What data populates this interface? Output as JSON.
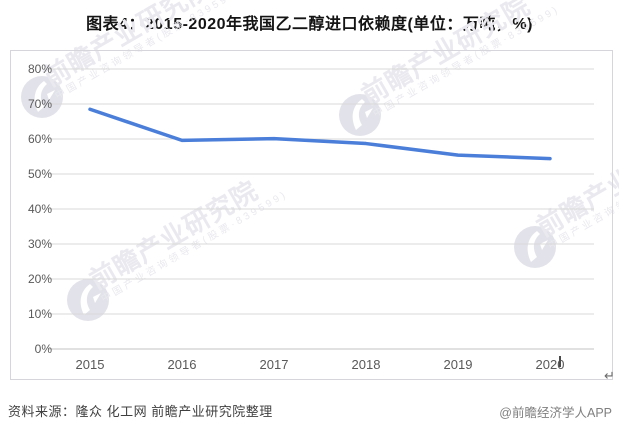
{
  "title": "图表4：2015-2020年我国乙二醇进口依赖度(单位：万吨，%)",
  "chart_data": {
    "type": "line",
    "title": "2015-2020年我国乙二醇进口依赖度",
    "x": [
      "2015",
      "2016",
      "2017",
      "2018",
      "2019",
      "2020"
    ],
    "series": [
      {
        "name": "乙二醇进口依赖度",
        "values": [
          68.5,
          59.6,
          60.1,
          58.7,
          55.4,
          54.4
        ]
      }
    ],
    "yticks": [
      "80%",
      "70%",
      "60%",
      "50%",
      "40%",
      "30%",
      "20%",
      "10%",
      "0%"
    ],
    "xlabel": "",
    "ylabel": "",
    "ylim": [
      0,
      80
    ],
    "ytick_step": 10,
    "grid": true,
    "legend_position": "none"
  },
  "colors": {
    "line": "#4a7ed9",
    "gridline": "#d9d9d9",
    "axis_line": "#c3c3c3",
    "watermark": "#e9e9ef",
    "watermark_logo": "#e2e2ea"
  },
  "watermark": {
    "brand": "前瞻产业研究院",
    "tagline": "中国产业咨询领导者(股票·839599)"
  },
  "marks": {
    "return_mark": "↵"
  },
  "footer": {
    "source": "资料来源：隆众 化工网 前瞻产业研究院整理",
    "credit": "@前瞻经济学人APP"
  }
}
